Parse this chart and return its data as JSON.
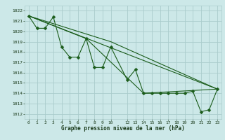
{
  "background_color": "#cce8e8",
  "grid_color": "#aacccc",
  "line_color": "#1a5c1a",
  "marker_color": "#1a5c1a",
  "xlabel": "Graphe pression niveau de la mer (hPa)",
  "xlim": [
    -0.5,
    23.5
  ],
  "ylim": [
    1011.5,
    1022.5
  ],
  "yticks": [
    1012,
    1013,
    1014,
    1015,
    1016,
    1017,
    1018,
    1019,
    1020,
    1021,
    1022
  ],
  "xticks": [
    0,
    1,
    2,
    3,
    4,
    5,
    6,
    7,
    8,
    9,
    10,
    12,
    13,
    14,
    15,
    16,
    17,
    18,
    19,
    20,
    21,
    22,
    23
  ],
  "series": [
    [
      0,
      1021.5
    ],
    [
      1,
      1020.3
    ],
    [
      2,
      1020.3
    ],
    [
      3,
      1021.4
    ],
    [
      4,
      1018.5
    ],
    [
      5,
      1017.5
    ],
    [
      6,
      1017.5
    ],
    [
      7,
      1019.3
    ],
    [
      8,
      1016.5
    ],
    [
      9,
      1016.5
    ],
    [
      10,
      1018.5
    ],
    [
      12,
      1015.3
    ],
    [
      13,
      1016.3
    ],
    [
      14,
      1014.0
    ],
    [
      15,
      1014.0
    ],
    [
      16,
      1014.0
    ],
    [
      17,
      1014.0
    ],
    [
      18,
      1014.0
    ],
    [
      19,
      1014.0
    ],
    [
      20,
      1014.2
    ],
    [
      21,
      1012.2
    ],
    [
      22,
      1012.4
    ],
    [
      23,
      1014.4
    ]
  ],
  "line2": [
    [
      0,
      1021.5
    ],
    [
      23,
      1014.4
    ]
  ],
  "line3": [
    [
      0,
      1021.5
    ],
    [
      10,
      1019.0
    ],
    [
      23,
      1014.4
    ]
  ],
  "line4": [
    [
      0,
      1021.5
    ],
    [
      7,
      1019.3
    ],
    [
      14,
      1014.0
    ],
    [
      23,
      1014.4
    ]
  ]
}
